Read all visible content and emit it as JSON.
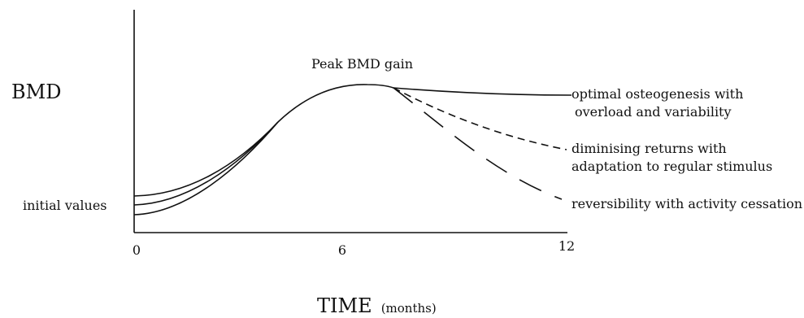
{
  "axes": {
    "ylabel": "BMD",
    "xlabel_main": "TIME",
    "xlabel_unit": "(months)",
    "xticks": [
      "0",
      "6",
      "12"
    ]
  },
  "labels": {
    "peak": "Peak BMD gain",
    "initial": "initial values"
  },
  "outcomes": [
    {
      "line1": "optimal osteogenesis with",
      "line2": "overload and variability",
      "style": "solid"
    },
    {
      "line1": "diminising returns with",
      "line2": "adaptation to regular stimulus",
      "style": "short-dash"
    },
    {
      "line1": "reversibility with activity cessation",
      "line2": "",
      "style": "long-dash"
    }
  ]
}
